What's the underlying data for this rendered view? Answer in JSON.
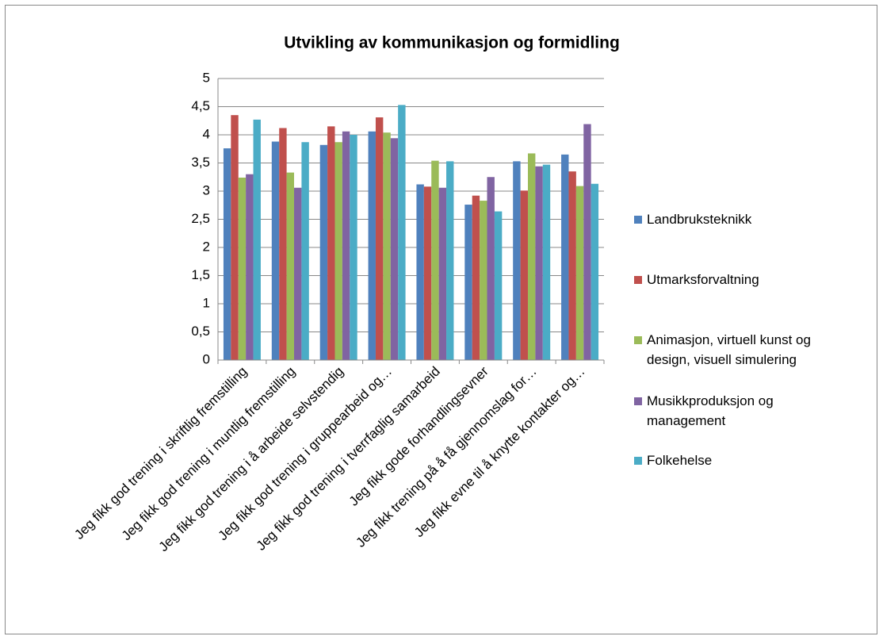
{
  "chart_data": {
    "type": "bar",
    "title": "Utvikling av kommunikasjon og formidling",
    "categories": [
      "Jeg fikk god trening i skriftlig fremstilling",
      "Jeg fikk god trening i muntlig fremstilling",
      "Jeg fikk god trening i å arbeide selvstendig",
      "Jeg fikk god trening i gruppearbeid og…",
      "Jeg fikk god trening i tverrfaglig samarbeid",
      "Jeg fikk gode forhandlingsevner",
      "Jeg fikk trening på å få gjennomslag for…",
      "Jeg fikk evne til å knytte kontakter og…"
    ],
    "series": [
      {
        "name": "Landbruksteknikk",
        "color": "#4f81bd",
        "values": [
          3.76,
          3.88,
          3.82,
          4.06,
          3.12,
          2.76,
          3.53,
          3.65
        ]
      },
      {
        "name": "Utmarksforvaltning",
        "color": "#c0504d",
        "values": [
          4.35,
          4.12,
          4.15,
          4.31,
          3.08,
          2.92,
          3.01,
          3.35
        ]
      },
      {
        "name": "Animasjon, virtuell kunst og design, visuell simulering",
        "color": "#9bbb59",
        "values": [
          3.24,
          3.33,
          3.87,
          4.04,
          3.54,
          2.83,
          3.67,
          3.09
        ]
      },
      {
        "name": "Musikkproduksjon og management",
        "color": "#8064a2",
        "values": [
          3.3,
          3.06,
          4.06,
          3.94,
          3.06,
          3.25,
          3.44,
          4.19
        ]
      },
      {
        "name": "Folkehelse",
        "color": "#4bacc6",
        "values": [
          4.27,
          3.87,
          4.0,
          4.53,
          3.53,
          2.64,
          3.47,
          3.13
        ]
      }
    ],
    "ylim": [
      0,
      5
    ],
    "yticks": [
      0,
      {
        "value": 0.5,
        "label": "0,5"
      },
      1,
      {
        "value": 1.5,
        "label": "1,5"
      },
      2,
      {
        "value": 2.5,
        "label": "2,5"
      },
      3,
      {
        "value": 3.5,
        "label": "3,5"
      },
      4,
      {
        "value": 4.5,
        "label": "4,5"
      },
      5
    ],
    "grid": true,
    "legend": "right"
  }
}
